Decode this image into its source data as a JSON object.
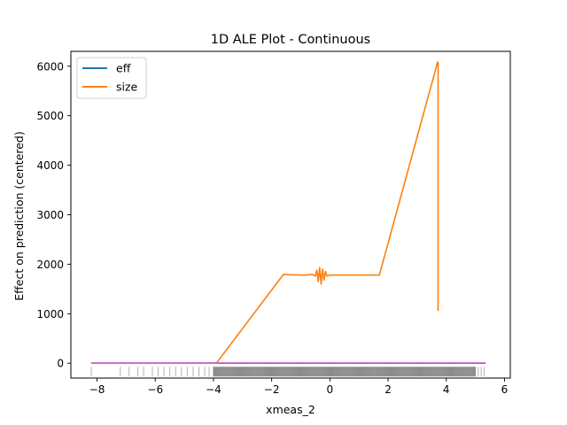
{
  "chart_data": {
    "type": "line",
    "title": "1D ALE Plot - Continuous",
    "xlabel": "xmeas_2",
    "ylabel": "Effect on prediction (centered)",
    "xlim": [
      -8.9,
      6.2
    ],
    "ylim": [
      -300,
      6300
    ],
    "xticks": [
      -8,
      -6,
      -4,
      -2,
      0,
      2,
      4,
      6
    ],
    "yticks": [
      0,
      1000,
      2000,
      3000,
      4000,
      5000,
      6000
    ],
    "xtick_labels": [
      "−8",
      "−6",
      "−4",
      "−2",
      "0",
      "2",
      "4",
      "6"
    ],
    "ytick_labels": [
      "0",
      "1000",
      "2000",
      "3000",
      "4000",
      "5000",
      "6000"
    ],
    "grid": false,
    "legend_position": "top-left",
    "colors": {
      "eff": "#1f77b4",
      "size": "#ff7f0e",
      "baseline": "#cc66cc",
      "rug": "#000000"
    },
    "series": [
      {
        "name": "eff",
        "x": [
          -8.2,
          5.35
        ],
        "y": [
          0,
          0
        ]
      },
      {
        "name": "size",
        "x": [
          -8.2,
          -4.0,
          -3.9,
          -1.6,
          -0.9,
          -0.6,
          -0.5,
          -0.45,
          -0.4,
          -0.35,
          -0.3,
          -0.25,
          -0.2,
          -0.15,
          -0.1,
          0.0,
          0.1,
          1.7,
          3.7,
          3.72,
          3.72
        ],
        "y": [
          0,
          0,
          0,
          1790,
          1780,
          1790,
          1760,
          1880,
          1650,
          1930,
          1600,
          1900,
          1680,
          1850,
          1760,
          1780,
          1780,
          1780,
          6080,
          6080,
          1060
        ]
      },
      {
        "name": "",
        "x": [
          -8.2,
          5.35
        ],
        "y": [
          5,
          5
        ]
      }
    ],
    "rug": {
      "dense_range": [
        -4.0,
        5.0
      ],
      "sparse_points": [
        -8.2,
        -7.2,
        -6.9,
        -6.6,
        -6.4,
        -6.1,
        -5.9,
        -5.7,
        -5.5,
        -5.3,
        -5.1,
        -4.9,
        -4.7,
        -4.5,
        -4.3,
        -4.15,
        5.1,
        5.2,
        5.3
      ]
    },
    "legend": [
      {
        "label": "eff",
        "color": "#1f77b4"
      },
      {
        "label": "size",
        "color": "#ff7f0e"
      }
    ]
  }
}
